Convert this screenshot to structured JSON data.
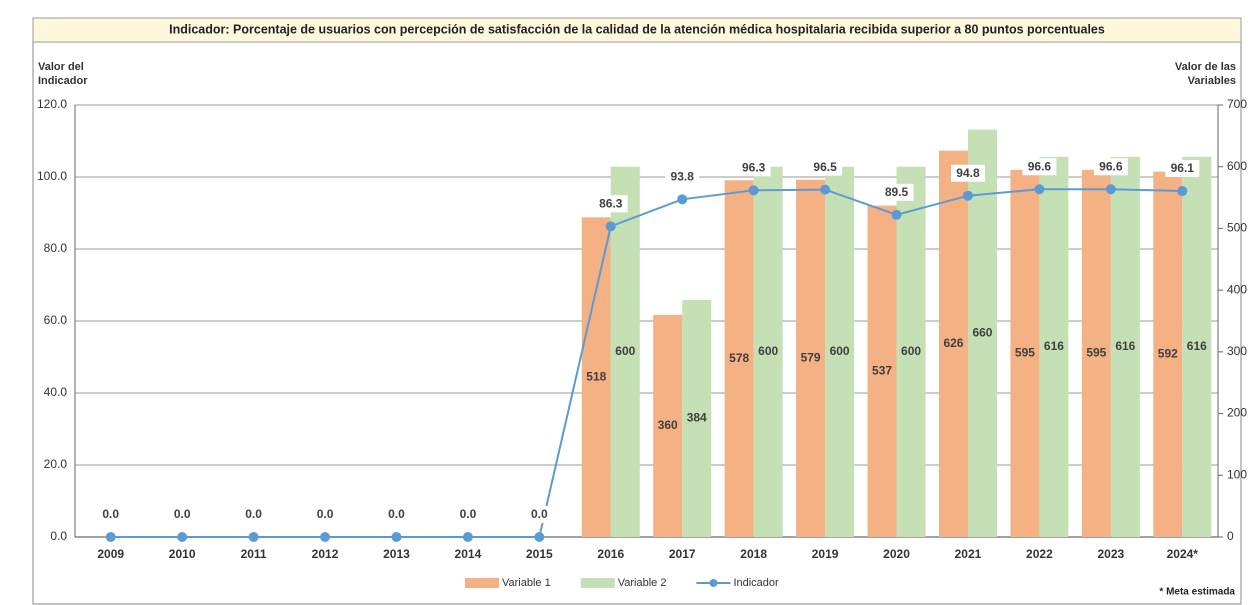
{
  "chart_data": {
    "type": "bar",
    "title": "Indicador: Porcentaje de usuarios con percepción de satisfacción de la calidad de la atención médica hospitalaria recibida superior a 80 puntos porcentuales",
    "y_label": "Valor del Indicador",
    "y2_label": "Valor de las Variables",
    "note": "* Meta estimada",
    "categories": [
      "2009",
      "2010",
      "2011",
      "2012",
      "2013",
      "2014",
      "2015",
      "2016",
      "2017",
      "2018",
      "2019",
      "2020",
      "2021",
      "2022",
      "2023",
      "2024*"
    ],
    "series": [
      {
        "name": "Variable 1",
        "type": "bar",
        "axis": "y2",
        "color": "#f4b183",
        "values": [
          null,
          null,
          null,
          null,
          null,
          null,
          null,
          518,
          360,
          578,
          579,
          537,
          626,
          595,
          595,
          592
        ]
      },
      {
        "name": "Variable 2",
        "type": "bar",
        "axis": "y2",
        "color": "#c5e0b4",
        "values": [
          null,
          null,
          null,
          null,
          null,
          null,
          null,
          600,
          384,
          600,
          600,
          600,
          660,
          616,
          616,
          616
        ]
      },
      {
        "name": "Indicador",
        "type": "line",
        "color": "#5b9bd5",
        "values": [
          0,
          0,
          0,
          0,
          0,
          0,
          0,
          86.3,
          93.8,
          96.3,
          96.5,
          89.5,
          94.8,
          96.6,
          96.6,
          96.1
        ],
        "value_labels": [
          "0.0",
          "0.0",
          "0.0",
          "0.0",
          "0.0",
          "0.0",
          "0.0",
          "86.3",
          "93.8",
          "96.3",
          "96.5",
          "89.5",
          "94.8",
          "96.6",
          "96.6",
          "96.1"
        ]
      }
    ],
    "ylim": [
      0,
      120
    ],
    "yticks": [
      {
        "value": 0,
        "label": "0.0"
      },
      {
        "value": 20,
        "label": "20.0"
      },
      {
        "value": 40,
        "label": "40.0"
      },
      {
        "value": 60,
        "label": "60.0"
      },
      {
        "value": 80,
        "label": "80.0"
      },
      {
        "value": 100,
        "label": "100.0"
      },
      {
        "value": 120,
        "label": "120.0"
      }
    ],
    "y2lim": [
      0,
      700
    ],
    "y2ticks": [
      0,
      100,
      200,
      300,
      400,
      500,
      600,
      700
    ],
    "grid": true,
    "legend": "bottom"
  }
}
